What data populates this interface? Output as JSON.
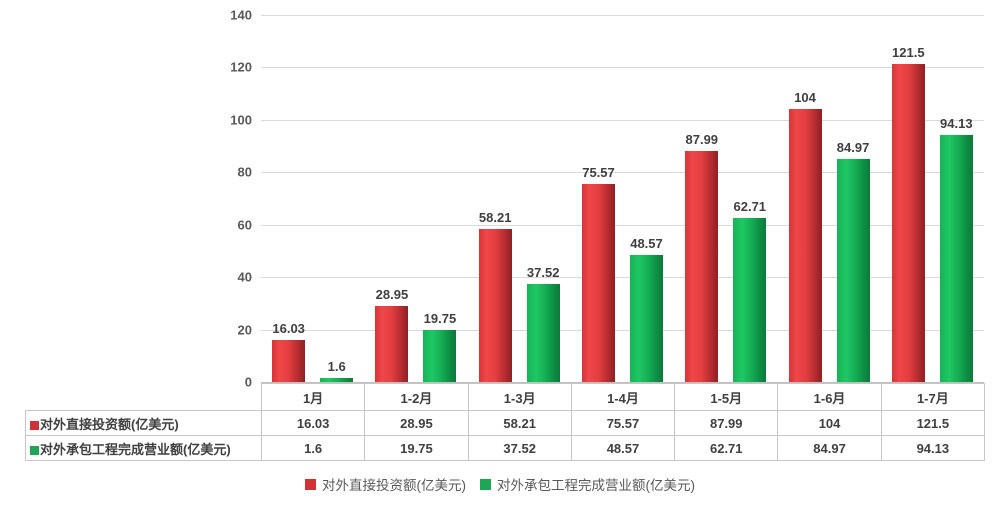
{
  "chart_data": {
    "type": "bar",
    "title": "",
    "categories": [
      "1月",
      "1-2月",
      "1-3月",
      "1-4月",
      "1-5月",
      "1-6月",
      "1-7月"
    ],
    "series": [
      {
        "name": "对外直接投资额(亿美元)",
        "color": "#cf3338",
        "values": [
          16.03,
          28.95,
          58.21,
          75.57,
          87.99,
          104,
          121.5
        ]
      },
      {
        "name": "对外承包工程完成营业额(亿美元)",
        "color": "#1ea654",
        "values": [
          1.6,
          19.75,
          37.52,
          48.57,
          62.71,
          84.97,
          94.13
        ]
      }
    ],
    "xlabel": "",
    "ylabel": "",
    "ylim": [
      0,
      140
    ],
    "ytick_step": 20,
    "yticks": [
      0,
      20,
      40,
      60,
      80,
      100,
      120,
      140
    ],
    "grid": "horizontal",
    "legend_position": "bottom",
    "show_data_table": true,
    "value_labels_shown": true
  },
  "colors": {
    "grid_line": "#d9d9d9",
    "axis_text": "#595959",
    "label_text": "#3f3f3f",
    "table_border": "#c6c6c6",
    "background": "#ffffff"
  }
}
